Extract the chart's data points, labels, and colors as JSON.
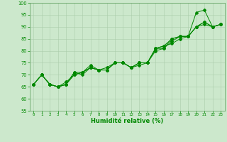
{
  "title": "",
  "xlabel": "Humidité relative (%)",
  "ylabel": "",
  "background_color": "#cce8cc",
  "grid_color": "#aaccaa",
  "line_color": "#008800",
  "xlim": [
    -0.5,
    23.5
  ],
  "ylim": [
    55,
    100
  ],
  "yticks": [
    55,
    60,
    65,
    70,
    75,
    80,
    85,
    90,
    95,
    100
  ],
  "xticks": [
    0,
    1,
    2,
    3,
    4,
    5,
    6,
    7,
    8,
    9,
    10,
    11,
    12,
    13,
    14,
    15,
    16,
    17,
    18,
    19,
    20,
    21,
    22,
    23
  ],
  "series": [
    {
      "x": [
        0,
        1,
        2,
        3,
        4,
        5,
        6,
        7,
        8,
        9,
        10,
        11,
        12,
        13,
        14,
        15,
        16,
        17,
        18,
        19,
        20,
        21,
        22,
        23
      ],
      "y": [
        66,
        70,
        66,
        65,
        66,
        71,
        71,
        73,
        72,
        72,
        75,
        75,
        73,
        75,
        75,
        81,
        82,
        85,
        86,
        86,
        96,
        97,
        90,
        91
      ]
    },
    {
      "x": [
        0,
        1,
        2,
        3,
        4,
        5,
        6,
        7,
        8,
        9,
        10,
        11,
        12,
        13,
        14,
        15,
        16,
        17,
        18,
        19,
        20,
        21,
        22,
        23
      ],
      "y": [
        66,
        70,
        66,
        65,
        67,
        70,
        71,
        74,
        72,
        72,
        75,
        75,
        73,
        74,
        75,
        80,
        81,
        85,
        86,
        86,
        90,
        92,
        90,
        91
      ]
    },
    {
      "x": [
        0,
        1,
        2,
        3,
        4,
        5,
        6,
        7,
        8,
        9,
        10,
        11,
        12,
        13,
        14,
        15,
        16,
        17,
        18,
        19,
        20,
        21,
        22,
        23
      ],
      "y": [
        66,
        70,
        66,
        65,
        66,
        71,
        70,
        73,
        72,
        73,
        75,
        75,
        73,
        75,
        75,
        81,
        82,
        83,
        85,
        86,
        90,
        91,
        90,
        91
      ]
    },
    {
      "x": [
        0,
        1,
        2,
        3,
        4,
        5,
        6,
        7,
        8,
        9,
        10,
        11,
        12,
        13,
        14,
        15,
        16,
        17,
        18,
        19,
        20,
        21,
        22,
        23
      ],
      "y": [
        66,
        70,
        66,
        65,
        66,
        70,
        71,
        73,
        72,
        72,
        75,
        75,
        73,
        75,
        75,
        81,
        81,
        84,
        86,
        86,
        90,
        92,
        90,
        91
      ]
    }
  ]
}
